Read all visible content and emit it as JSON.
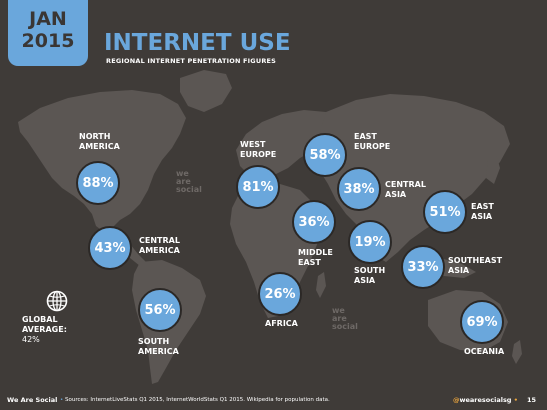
{
  "date_tab": {
    "month": "JAN",
    "year": "2015"
  },
  "watermark": "we\nare\nsocial",
  "global": {
    "label": "GLOBAL\nAVERAGE:",
    "value": "42%"
  },
  "footer": {
    "brand": "We Are Social",
    "sources": "Sources: InternetLiveStats Q1 2015, InternetWorldStats Q1 2015. Wikipedia for population data.",
    "handle_at": "@",
    "handle": "wearesocialsg",
    "separator": "•",
    "page": "15"
  },
  "colors": {
    "background": "#3f3b38",
    "accent": "#6aa7dc",
    "continents": "#5b5653",
    "handle_at": "#e8a33d"
  },
  "chart_data": {
    "type": "map-bubbles",
    "title": "INTERNET USE",
    "subtitle": "REGIONAL INTERNET PENETRATION FIGURES",
    "unit": "%",
    "regions": [
      {
        "name": "NORTH\nAMERICA",
        "value": 88,
        "label": "88%"
      },
      {
        "name": "CENTRAL\nAMERICA",
        "value": 43,
        "label": "43%"
      },
      {
        "name": "SOUTH\nAMERICA",
        "value": 56,
        "label": "56%"
      },
      {
        "name": "WEST\nEUROPE",
        "value": 81,
        "label": "81%"
      },
      {
        "name": "EAST\nEUROPE",
        "value": 58,
        "label": "58%"
      },
      {
        "name": "CENTRAL\nASIA",
        "value": 38,
        "label": "38%"
      },
      {
        "name": "MIDDLE\nEAST",
        "value": 36,
        "label": "36%"
      },
      {
        "name": "AFRICA",
        "value": 26,
        "label": "26%"
      },
      {
        "name": "SOUTH\nASIA",
        "value": 19,
        "label": "19%"
      },
      {
        "name": "EAST\nASIA",
        "value": 51,
        "label": "51%"
      },
      {
        "name": "SOUTHEAST\nASIA",
        "value": 33,
        "label": "33%"
      },
      {
        "name": "OCEANIA",
        "value": 69,
        "label": "69%"
      }
    ]
  }
}
